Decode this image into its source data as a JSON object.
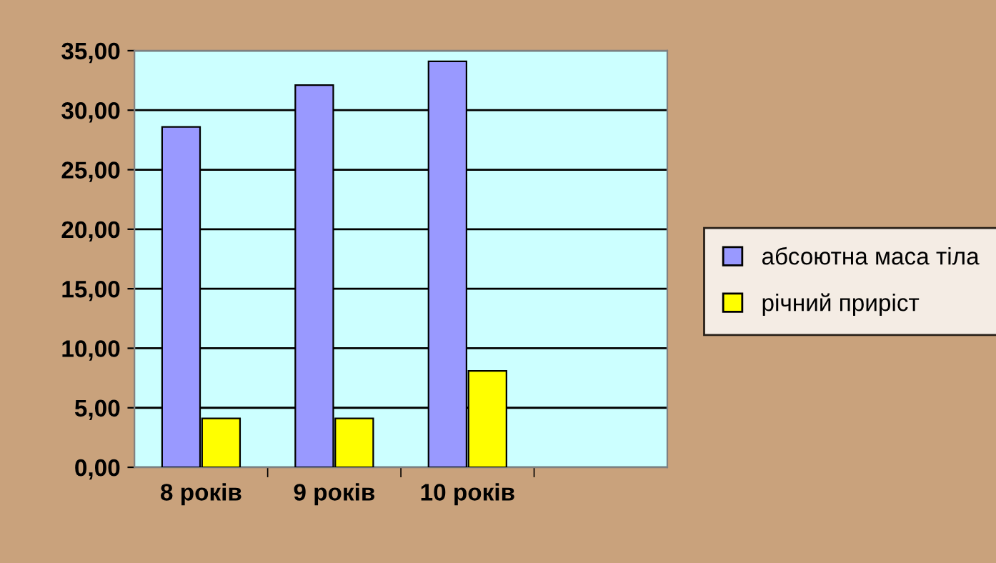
{
  "chart_data": {
    "type": "bar",
    "categories": [
      "8 років",
      "9 років",
      "10 років",
      null
    ],
    "series": [
      {
        "name": "абсоютна маса тіла",
        "color": "#9999ff",
        "values": [
          28.6,
          32.1,
          34.1,
          null
        ]
      },
      {
        "name": "річний приріст",
        "color": "#ffff00",
        "values": [
          4.1,
          4.1,
          8.1,
          null
        ]
      }
    ],
    "ylim": [
      0,
      35
    ],
    "yticks": [
      {
        "value": 0,
        "label": "0,00"
      },
      {
        "value": 5,
        "label": "5,00"
      },
      {
        "value": 10,
        "label": "10,00"
      },
      {
        "value": 15,
        "label": "15,00"
      },
      {
        "value": 20,
        "label": "20,00"
      },
      {
        "value": 25,
        "label": "25,00"
      },
      {
        "value": 30,
        "label": "30,00"
      },
      {
        "value": 35,
        "label": "35,00"
      }
    ],
    "grid": "y",
    "legend": "right"
  }
}
